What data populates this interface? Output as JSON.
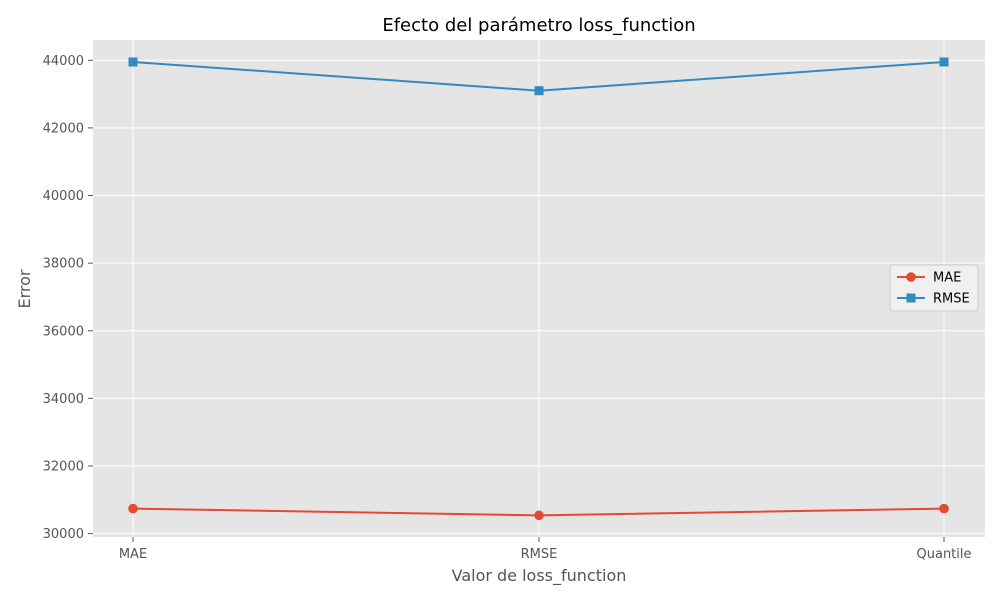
{
  "chart_data": {
    "type": "line",
    "title": "Efecto del parámetro loss_function",
    "xlabel": "Valor de loss_function",
    "ylabel": "Error",
    "categories": [
      "MAE",
      "RMSE",
      "Quantile"
    ],
    "ylim": [
      29900,
      44600
    ],
    "yticks": [
      30000,
      32000,
      34000,
      36000,
      38000,
      40000,
      42000,
      44000
    ],
    "grid": true,
    "legend_position": "center-right",
    "series": [
      {
        "name": "MAE",
        "values": [
          30740,
          30540,
          30740
        ],
        "color": "#E24A33",
        "marker": "circle"
      },
      {
        "name": "RMSE",
        "values": [
          43950,
          43100,
          43950
        ],
        "color": "#348ABD",
        "marker": "square"
      }
    ]
  }
}
